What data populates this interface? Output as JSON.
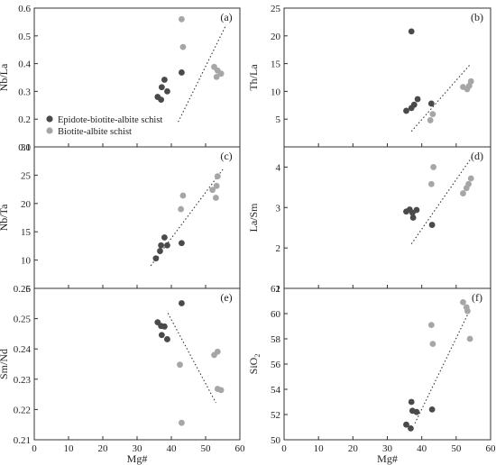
{
  "colors": {
    "series1": "#4a4a4a",
    "series2": "#a6a6a6",
    "axis": "#333333",
    "trend": "#333333"
  },
  "legend": {
    "placement": "inside-panel-a-bottom-left",
    "items": [
      {
        "label": "Epidote-biotite-albite schist",
        "series": 0
      },
      {
        "label": "Biotite-albite schist",
        "series": 1
      }
    ]
  },
  "chart_data": [
    {
      "type": "scatter",
      "panel_label": "(a)",
      "xlabel": "",
      "ylabel": "Nb/La",
      "xlim": [
        0,
        60
      ],
      "ylim": [
        0.1,
        0.6
      ],
      "yticks": [
        "0.1",
        "0.2",
        "0.3",
        "0.4",
        "0.5",
        "0.6"
      ],
      "series": [
        {
          "name": "Epidote-biotite-albite schist",
          "points": [
            [
              36.0,
              0.28
            ],
            [
              37.0,
              0.27
            ],
            [
              37.2,
              0.315
            ],
            [
              38.0,
              0.342
            ],
            [
              38.8,
              0.3
            ],
            [
              43.0,
              0.368
            ]
          ]
        },
        {
          "name": "Biotite-albite schist",
          "points": [
            [
              43.0,
              0.56
            ],
            [
              43.4,
              0.46
            ],
            [
              52.5,
              0.388
            ],
            [
              53.5,
              0.375
            ],
            [
              53.2,
              0.352
            ],
            [
              54.5,
              0.364
            ]
          ]
        }
      ],
      "trend": [
        [
          42.0,
          0.19
        ],
        [
          56.0,
          0.54
        ]
      ]
    },
    {
      "type": "scatter",
      "panel_label": "(b)",
      "xlabel": "",
      "ylabel": "Th/La",
      "xlim": [
        0,
        60
      ],
      "ylim": [
        0,
        25
      ],
      "yticks": [
        "5",
        "10",
        "15",
        "20",
        "25"
      ],
      "series": [
        {
          "name": "Epidote-biotite-albite schist",
          "points": [
            [
              35.5,
              6.5
            ],
            [
              37.0,
              20.8
            ],
            [
              37.0,
              7.0
            ],
            [
              37.8,
              7.6
            ],
            [
              38.8,
              8.6
            ],
            [
              42.8,
              7.8
            ]
          ]
        },
        {
          "name": "Biotite-albite schist",
          "points": [
            [
              42.5,
              4.8
            ],
            [
              43.2,
              5.9
            ],
            [
              52.0,
              10.8
            ],
            [
              53.2,
              10.4
            ],
            [
              53.8,
              11.0
            ],
            [
              54.3,
              11.8
            ]
          ]
        }
      ],
      "trend": [
        [
          37.0,
          2.8
        ],
        [
          54.0,
          14.8
        ]
      ]
    },
    {
      "type": "scatter",
      "panel_label": "(c)",
      "xlabel": "",
      "ylabel": "Nb/Ta",
      "xlim": [
        0,
        60
      ],
      "ylim": [
        5,
        30
      ],
      "yticks": [
        "5",
        "10",
        "15",
        "20",
        "25",
        "30"
      ],
      "series": [
        {
          "name": "Epidote-biotite-albite schist",
          "points": [
            [
              35.5,
              10.3
            ],
            [
              36.7,
              11.6
            ],
            [
              37.0,
              12.6
            ],
            [
              38.0,
              14.0
            ],
            [
              38.8,
              12.6
            ],
            [
              43.0,
              13.0
            ]
          ]
        },
        {
          "name": "Biotite-albite schist",
          "points": [
            [
              42.8,
              19.0
            ],
            [
              43.4,
              21.4
            ],
            [
              52.0,
              22.4
            ],
            [
              53.2,
              23.1
            ],
            [
              53.5,
              24.8
            ],
            [
              53.0,
              21.0
            ]
          ]
        }
      ],
      "trend": [
        [
          34.0,
          9.0
        ],
        [
          55.0,
          26.0
        ]
      ]
    },
    {
      "type": "scatter",
      "panel_label": "(d)",
      "xlabel": "",
      "ylabel": "La/Sm",
      "xlim": [
        0,
        60
      ],
      "ylim": [
        1,
        4.5
      ],
      "yticks": [
        "1",
        "2",
        "3",
        "4"
      ],
      "series": [
        {
          "name": "Epidote-biotite-albite schist",
          "points": [
            [
              35.5,
              2.9
            ],
            [
              36.5,
              2.95
            ],
            [
              37.3,
              2.87
            ],
            [
              38.5,
              2.94
            ],
            [
              37.5,
              2.75
            ],
            [
              43.0,
              2.57
            ]
          ]
        },
        {
          "name": "Biotite-albite schist",
          "points": [
            [
              42.8,
              3.58
            ],
            [
              43.4,
              4.0
            ],
            [
              52.0,
              3.35
            ],
            [
              53.0,
              3.48
            ],
            [
              53.6,
              3.58
            ],
            [
              54.3,
              3.72
            ]
          ]
        }
      ],
      "trend": [
        [
          37.0,
          2.1
        ],
        [
          55.0,
          4.3
        ]
      ]
    },
    {
      "type": "scatter",
      "panel_label": "(e)",
      "xlabel": "Mg#",
      "ylabel": "Sm/Nd",
      "xlim": [
        0,
        60
      ],
      "xticks": [
        "0",
        "10",
        "20",
        "30",
        "40",
        "50",
        "60"
      ],
      "ylim": [
        0.21,
        0.26
      ],
      "yticks": [
        "0.21",
        "0.22",
        "0.23",
        "0.24",
        "0.25",
        "0.26"
      ],
      "series": [
        {
          "name": "Epidote-biotite-albite schist",
          "points": [
            [
              36.0,
              0.2488
            ],
            [
              37.0,
              0.2476
            ],
            [
              38.0,
              0.2474
            ],
            [
              37.2,
              0.2446
            ],
            [
              38.8,
              0.2432
            ],
            [
              43.0,
              0.2551
            ]
          ]
        },
        {
          "name": "Biotite-albite schist",
          "points": [
            [
              42.5,
              0.2348
            ],
            [
              43.0,
              0.2156
            ],
            [
              52.5,
              0.238
            ],
            [
              53.5,
              0.2391
            ],
            [
              53.5,
              0.2268
            ],
            [
              54.5,
              0.2264
            ]
          ]
        }
      ],
      "trend": [
        [
          39.0,
          0.2518
        ],
        [
          53.0,
          0.2222
        ]
      ]
    },
    {
      "type": "scatter",
      "panel_label": "(f)",
      "xlabel": "Mg#",
      "ylabel": "SiO",
      "ylabel_sub": "2",
      "xlim": [
        0,
        60
      ],
      "xticks": [
        "0",
        "10",
        "20",
        "30",
        "40",
        "50",
        "60"
      ],
      "ylim": [
        50,
        62
      ],
      "yticks": [
        "50",
        "52",
        "54",
        "56",
        "58",
        "60",
        "62"
      ],
      "series": [
        {
          "name": "Epidote-biotite-albite schist",
          "points": [
            [
              35.5,
              51.2
            ],
            [
              36.8,
              50.9
            ],
            [
              37.0,
              53.0
            ],
            [
              37.3,
              52.3
            ],
            [
              38.5,
              52.2
            ],
            [
              43.0,
              52.4
            ]
          ]
        },
        {
          "name": "Biotite-albite schist",
          "points": [
            [
              42.8,
              59.1
            ],
            [
              43.2,
              57.6
            ],
            [
              52.0,
              60.9
            ],
            [
              53.0,
              60.5
            ],
            [
              53.3,
              60.2
            ],
            [
              54.0,
              58.0
            ]
          ]
        }
      ],
      "trend": [
        [
          38.0,
          51.3
        ],
        [
          54.0,
          60.3
        ]
      ]
    }
  ]
}
